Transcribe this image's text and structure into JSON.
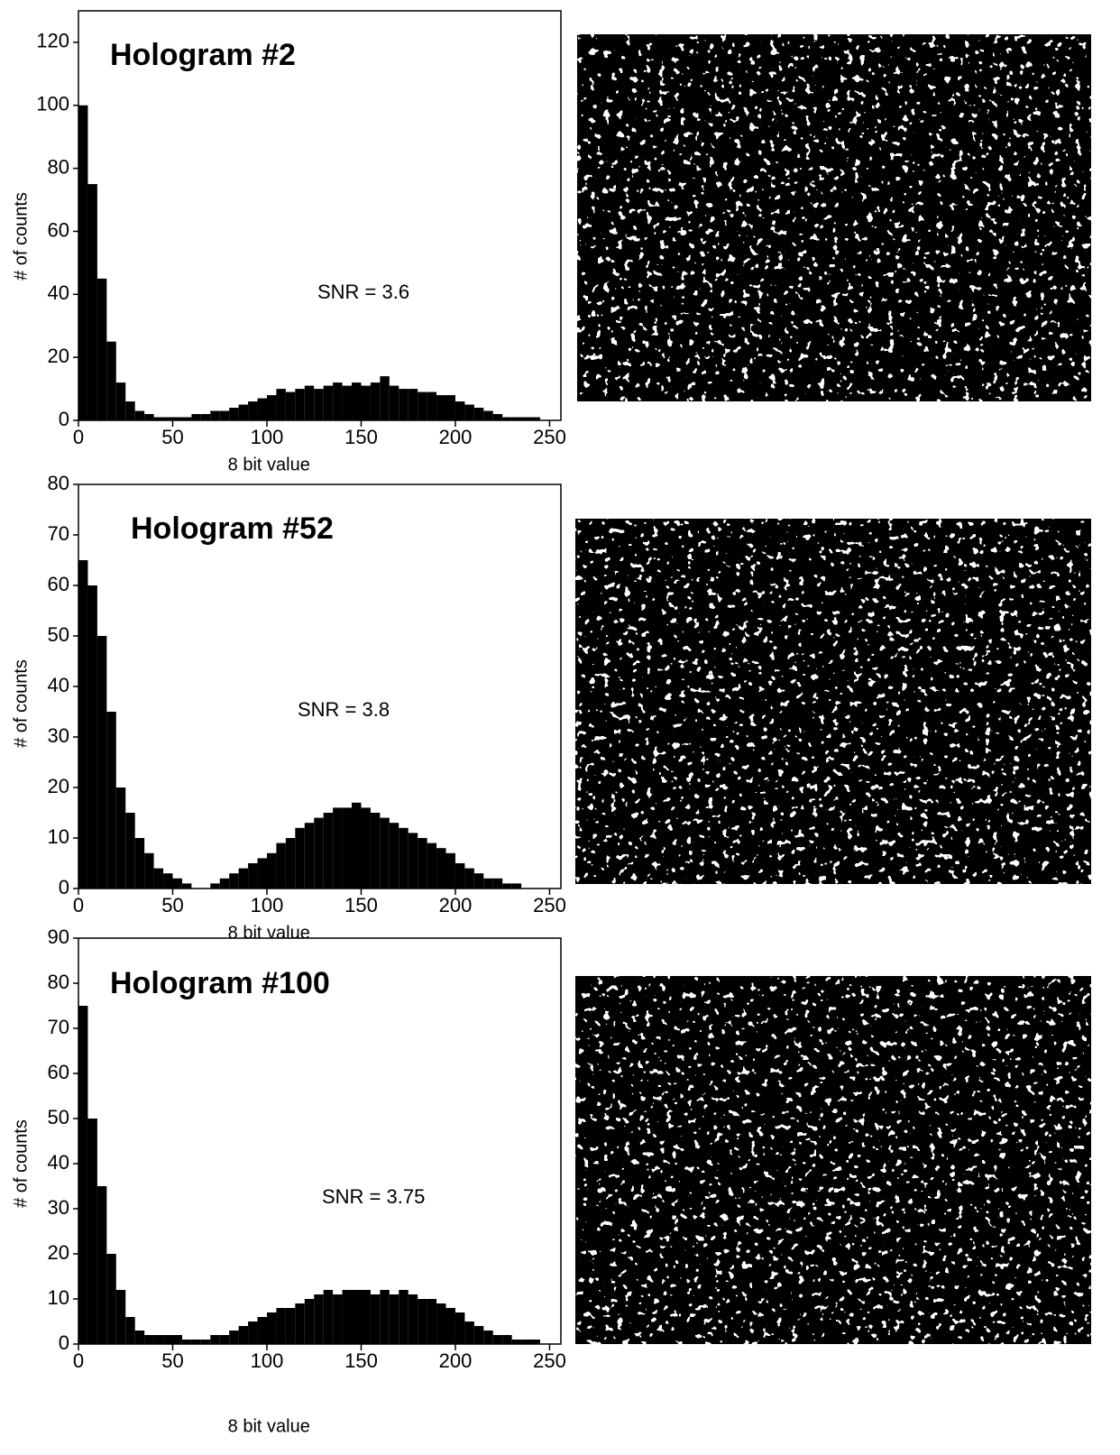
{
  "chart_data": [
    {
      "type": "histogram",
      "title": "Hologram #2",
      "annotation": "SNR = 3.6",
      "x_label": "8 bit value",
      "y_label": "# of counts",
      "color": "#000000",
      "bins": [
        0,
        5,
        10,
        15,
        20,
        25,
        30,
        35,
        40,
        45,
        50,
        55,
        60,
        65,
        70,
        75,
        80,
        85,
        90,
        95,
        100,
        105,
        110,
        115,
        120,
        125,
        130,
        135,
        140,
        145,
        150,
        155,
        160,
        165,
        170,
        175,
        180,
        185,
        190,
        195,
        200,
        205,
        210,
        215,
        220,
        225,
        230,
        235,
        240,
        245,
        250,
        255
      ],
      "values": [
        100,
        75,
        45,
        25,
        12,
        6,
        3,
        2,
        1,
        1,
        1,
        1,
        2,
        2,
        3,
        3,
        4,
        5,
        6,
        7,
        8,
        10,
        9,
        10,
        11,
        10,
        11,
        12,
        11,
        12,
        11,
        12,
        14,
        11,
        10,
        10,
        9,
        9,
        8,
        8,
        6,
        5,
        4,
        3,
        2,
        1,
        1,
        1,
        1,
        0,
        0
      ],
      "xlim": [
        0,
        256
      ],
      "xticks": [
        0,
        50,
        100,
        150,
        200,
        250
      ],
      "ylim": [
        0,
        130
      ],
      "yticks": [
        0,
        20,
        40,
        60,
        80,
        100,
        120
      ]
    },
    {
      "type": "histogram",
      "title": "Hologram #52",
      "annotation": "SNR = 3.8",
      "x_label": "8 bit value",
      "y_label": "# of counts",
      "color": "#000000",
      "bins": [
        0,
        5,
        10,
        15,
        20,
        25,
        30,
        35,
        40,
        45,
        50,
        55,
        60,
        65,
        70,
        75,
        80,
        85,
        90,
        95,
        100,
        105,
        110,
        115,
        120,
        125,
        130,
        135,
        140,
        145,
        150,
        155,
        160,
        165,
        170,
        175,
        180,
        185,
        190,
        195,
        200,
        205,
        210,
        215,
        220,
        225,
        230,
        235,
        240,
        245,
        250,
        255
      ],
      "values": [
        65,
        60,
        50,
        35,
        20,
        15,
        10,
        7,
        4,
        3,
        2,
        1,
        0,
        0,
        1,
        2,
        3,
        4,
        5,
        6,
        7,
        9,
        10,
        12,
        13,
        14,
        15,
        16,
        16,
        17,
        16,
        15,
        14,
        13,
        12,
        11,
        10,
        9,
        8,
        7,
        5,
        4,
        3,
        2,
        2,
        1,
        1,
        0,
        0,
        0,
        0
      ],
      "xlim": [
        0,
        256
      ],
      "xticks": [
        0,
        50,
        100,
        150,
        200,
        250
      ],
      "ylim": [
        0,
        80
      ],
      "yticks": [
        0,
        10,
        20,
        30,
        40,
        50,
        60,
        70,
        80
      ]
    },
    {
      "type": "histogram",
      "title": "Hologram #100",
      "annotation": "SNR = 3.75",
      "x_label": "8 bit value",
      "y_label": "# of counts",
      "color": "#000000",
      "bins": [
        0,
        5,
        10,
        15,
        20,
        25,
        30,
        35,
        40,
        45,
        50,
        55,
        60,
        65,
        70,
        75,
        80,
        85,
        90,
        95,
        100,
        105,
        110,
        115,
        120,
        125,
        130,
        135,
        140,
        145,
        150,
        155,
        160,
        165,
        170,
        175,
        180,
        185,
        190,
        195,
        200,
        205,
        210,
        215,
        220,
        225,
        230,
        235,
        240,
        245,
        250,
        255
      ],
      "values": [
        75,
        50,
        35,
        20,
        12,
        6,
        3,
        2,
        2,
        2,
        2,
        1,
        1,
        1,
        2,
        2,
        3,
        4,
        5,
        6,
        7,
        8,
        8,
        9,
        10,
        11,
        12,
        11,
        12,
        12,
        12,
        11,
        12,
        11,
        12,
        11,
        10,
        10,
        9,
        8,
        7,
        5,
        4,
        3,
        2,
        2,
        1,
        1,
        1,
        0,
        0
      ],
      "xlim": [
        0,
        256
      ],
      "xticks": [
        0,
        50,
        100,
        150,
        200,
        250
      ],
      "ylim": [
        0,
        90
      ],
      "yticks": [
        0,
        10,
        20,
        30,
        40,
        50,
        60,
        70,
        80,
        90
      ]
    }
  ]
}
